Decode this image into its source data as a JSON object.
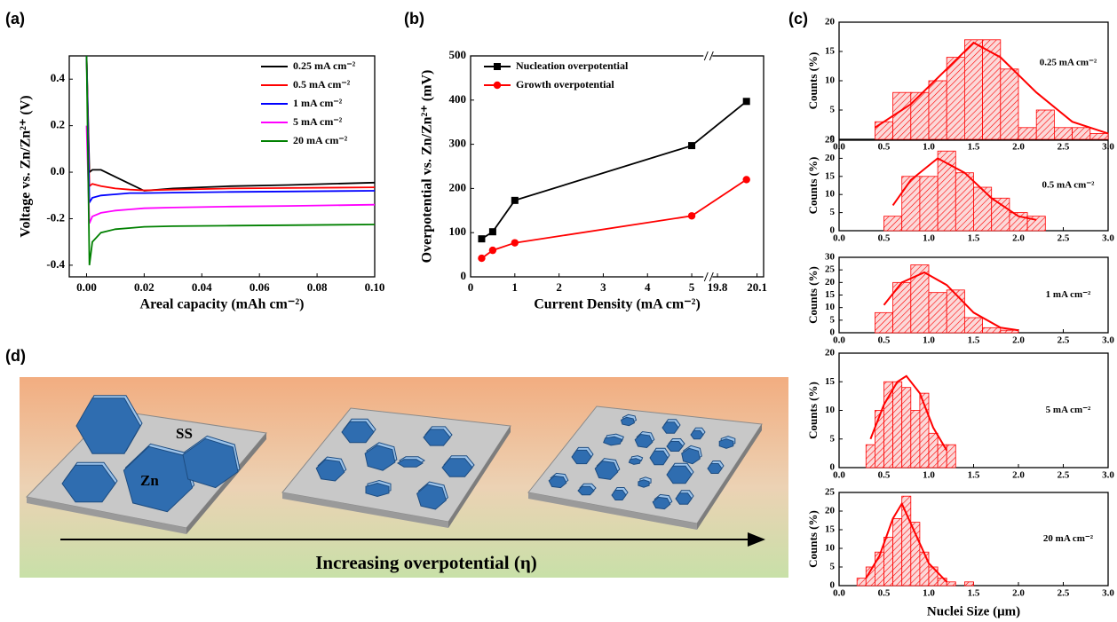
{
  "chart_data": [
    {
      "type": "line",
      "panel": "(a)",
      "xlabel": "Areal capacity (mAh cm⁻²)",
      "ylabel": "Voltage vs. Zn/Zn²⁺ (V)",
      "x": [
        0,
        0.001,
        0.002,
        0.005,
        0.01,
        0.015,
        0.02,
        0.03,
        0.05,
        0.07,
        0.1
      ],
      "series": [
        {
          "name": "0.25 mA cm⁻²",
          "color": "#000000",
          "values": [
            0.5,
            0.0,
            0.01,
            0.01,
            -0.02,
            -0.05,
            -0.08,
            -0.07,
            -0.06,
            -0.055,
            -0.045
          ]
        },
        {
          "name": "0.5 mA cm⁻²",
          "color": "#ff0000",
          "values": [
            0.5,
            -0.06,
            -0.05,
            -0.06,
            -0.07,
            -0.075,
            -0.078,
            -0.075,
            -0.07,
            -0.068,
            -0.065
          ]
        },
        {
          "name": "1 mA cm⁻²",
          "color": "#0000ff",
          "values": [
            0.5,
            -0.13,
            -0.11,
            -0.1,
            -0.095,
            -0.09,
            -0.09,
            -0.088,
            -0.085,
            -0.083,
            -0.08
          ]
        },
        {
          "name": "5 mA cm⁻²",
          "color": "#ff00ff",
          "values": [
            0.2,
            -0.22,
            -0.19,
            -0.175,
            -0.165,
            -0.16,
            -0.155,
            -0.152,
            -0.148,
            -0.145,
            -0.14
          ]
        },
        {
          "name": "20 mA cm⁻²",
          "color": "#008000",
          "values": [
            0.5,
            -0.4,
            -0.3,
            -0.26,
            -0.245,
            -0.24,
            -0.235,
            -0.232,
            -0.23,
            -0.228,
            -0.225
          ]
        }
      ],
      "xlim": [
        -0.006,
        0.1
      ],
      "xticks": [
        {
          "value": 0,
          "label": "0.00"
        },
        0.02,
        0.04,
        0.06,
        0.08,
        {
          "value": 0.1,
          "label": "0.10"
        }
      ],
      "ylim": [
        -0.45,
        0.5
      ],
      "yticks": [
        -0.4,
        -0.2,
        {
          "value": 0,
          "label": "0.0"
        },
        0.2,
        0.4
      ],
      "legend": "upper right"
    },
    {
      "type": "line",
      "panel": "(b)",
      "xlabel": "Current Density (mA cm⁻²)",
      "ylabel": "Overpotential vs. Zn/Zn²⁺ (mV)",
      "x": [
        0.25,
        0.5,
        1,
        5,
        20.02
      ],
      "series": [
        {
          "name": "Nucleation overpotential",
          "color": "#000000",
          "marker": "square",
          "values": [
            86,
            102,
            173,
            297,
            397
          ]
        },
        {
          "name": "Growth overpotential",
          "color": "#ff0000",
          "marker": "circle",
          "values": [
            42,
            60,
            77,
            138,
            220
          ]
        }
      ],
      "xlim": [
        0,
        20.15
      ],
      "xbreak": [
        5.3,
        19.75
      ],
      "xticks": [
        0,
        1,
        2,
        3,
        4,
        5,
        19.8,
        20.1
      ],
      "ylim": [
        0,
        500
      ],
      "yticks": [
        0,
        100,
        200,
        300,
        400,
        500
      ],
      "legend": "upper left"
    },
    {
      "type": "histogram",
      "panel": "(c)",
      "annotation": "0.25 mA cm⁻²",
      "ylabel": "Counts (%)",
      "color": "#ff0000",
      "bins": [
        0.4,
        0.6,
        0.8,
        1.0,
        1.2,
        1.4,
        1.6,
        1.8,
        2.0,
        2.2,
        2.4,
        2.6,
        2.8,
        3.0
      ],
      "counts": [
        3,
        8,
        8,
        10,
        14,
        17,
        17,
        12,
        2,
        5,
        2,
        2,
        1
      ],
      "fit": {
        "x": [
          0.4,
          0.8,
          1.2,
          1.5,
          1.8,
          2.2,
          2.6,
          3.0
        ],
        "values": [
          2,
          6,
          12,
          16.5,
          14,
          8,
          3,
          1
        ]
      },
      "xlim": [
        0,
        3
      ],
      "xticks": [
        {
          "value": 0,
          "label": "0.0"
        },
        0.5,
        {
          "value": 1,
          "label": "1.0"
        },
        1.5,
        {
          "value": 2,
          "label": "2.0"
        },
        2.5,
        {
          "value": 3,
          "label": "3.0"
        }
      ],
      "ylim": [
        0,
        20
      ],
      "yticks": [
        0,
        5,
        10,
        15,
        20
      ]
    },
    {
      "type": "histogram",
      "annotation": "0.5 mA cm⁻²",
      "ylabel": "Counts (%)",
      "color": "#ff0000",
      "bins": [
        0.5,
        0.7,
        0.9,
        1.1,
        1.3,
        1.5,
        1.7,
        1.9,
        2.1,
        2.3
      ],
      "counts": [
        4,
        15,
        15,
        22,
        16,
        12,
        9,
        5,
        4
      ],
      "fit": {
        "x": [
          0.6,
          0.8,
          1.1,
          1.4,
          1.7,
          2.0,
          2.2
        ],
        "values": [
          7,
          14,
          20,
          16,
          9,
          4,
          3
        ]
      },
      "xlim": [
        0,
        3
      ],
      "xticks": [
        {
          "value": 0,
          "label": "0.0"
        },
        0.5,
        {
          "value": 1,
          "label": "1.0"
        },
        1.5,
        {
          "value": 2,
          "label": "2.0"
        },
        2.5,
        {
          "value": 3,
          "label": "3.0"
        }
      ],
      "ylim": [
        0,
        25
      ],
      "yticks": [
        0,
        5,
        10,
        15,
        20,
        25
      ]
    },
    {
      "type": "histogram",
      "annotation": "1 mA cm⁻²",
      "ylabel": "Counts (%)",
      "color": "#ff0000",
      "bins": [
        0.4,
        0.6,
        0.8,
        1.0,
        1.2,
        1.4,
        1.6,
        1.8,
        2.0
      ],
      "counts": [
        8,
        20,
        27,
        16,
        17,
        6,
        2,
        1
      ],
      "fit": {
        "x": [
          0.5,
          0.7,
          0.95,
          1.2,
          1.5,
          1.8,
          2.0
        ],
        "values": [
          11,
          20,
          24,
          19,
          8,
          2,
          1
        ]
      },
      "xlim": [
        0,
        3
      ],
      "xticks": [
        {
          "value": 0,
          "label": "0.0"
        },
        0.5,
        {
          "value": 1,
          "label": "1.0"
        },
        1.5,
        {
          "value": 2,
          "label": "2.0"
        },
        2.5,
        {
          "value": 3,
          "label": "3.0"
        }
      ],
      "ylim": [
        0,
        30
      ],
      "yticks": [
        0,
        5,
        10,
        15,
        20,
        25,
        30
      ]
    },
    {
      "type": "histogram",
      "annotation": "5 mA cm⁻²",
      "ylabel": "Counts (%)",
      "color": "#ff0000",
      "bins": [
        0.3,
        0.4,
        0.5,
        0.6,
        0.7,
        0.8,
        0.9,
        1.0,
        1.1,
        1.2,
        1.3
      ],
      "counts": [
        4,
        10,
        15,
        15,
        14,
        10,
        13,
        6,
        4,
        4
      ],
      "fit": {
        "x": [
          0.35,
          0.5,
          0.65,
          0.75,
          0.9,
          1.05,
          1.2
        ],
        "values": [
          5,
          11,
          15,
          16,
          13,
          7,
          3
        ]
      },
      "xlim": [
        0,
        3
      ],
      "xticks": [
        {
          "value": 0,
          "label": "0.0"
        },
        0.5,
        {
          "value": 1,
          "label": "1.0"
        },
        1.5,
        {
          "value": 2,
          "label": "2.0"
        },
        2.5,
        {
          "value": 3,
          "label": "3.0"
        }
      ],
      "ylim": [
        0,
        20
      ],
      "yticks": [
        0,
        5,
        10,
        15,
        20
      ]
    },
    {
      "type": "histogram",
      "annotation": "20 mA cm⁻²",
      "ylabel": "Counts (%)",
      "xlabel": "Nuclei Size (μm)",
      "color": "#ff0000",
      "bins": [
        0.2,
        0.3,
        0.4,
        0.5,
        0.6,
        0.7,
        0.8,
        0.9,
        1.0,
        1.1,
        1.2,
        1.3,
        1.4,
        1.5
      ],
      "counts": [
        2,
        5,
        9,
        13,
        18,
        24,
        17,
        9,
        5,
        2,
        1,
        0,
        1
      ],
      "fit": {
        "x": [
          0.3,
          0.45,
          0.6,
          0.7,
          0.85,
          1.0,
          1.2
        ],
        "values": [
          2,
          8,
          18,
          22,
          14,
          6,
          1
        ]
      },
      "xlim": [
        0,
        3
      ],
      "xticks": [
        {
          "value": 0,
          "label": "0.0"
        },
        0.5,
        {
          "value": 1,
          "label": "1.0"
        },
        1.5,
        {
          "value": 2,
          "label": "2.0"
        },
        2.5,
        {
          "value": 3,
          "label": "3.0"
        }
      ],
      "ylim": [
        0,
        25
      ],
      "yticks": [
        0,
        5,
        10,
        15,
        20,
        25
      ]
    }
  ],
  "diagram": {
    "panel": "(d)",
    "labels": [
      "SS",
      "Zn"
    ],
    "arrow_label": "Increasing overpotential (η)"
  }
}
